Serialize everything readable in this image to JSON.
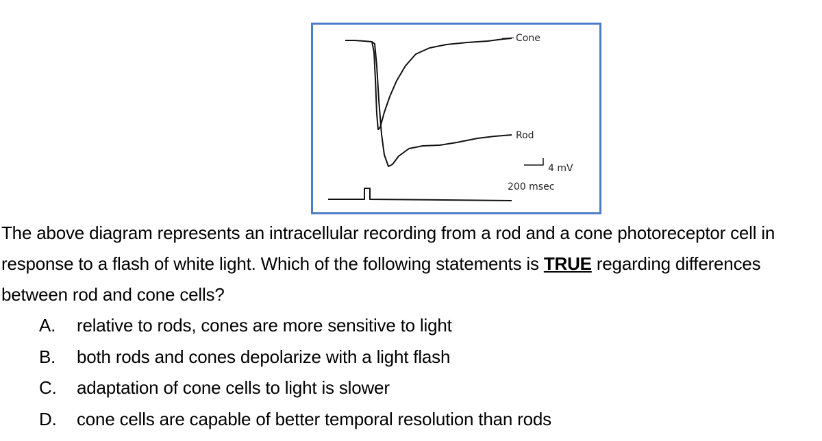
{
  "figure": {
    "cone_label": "Cone",
    "rod_label": "Rod",
    "voltage_scale": "4 mV",
    "time_scale": "200 msec"
  },
  "question": {
    "before": "The above diagram represents an intracellular recording from a rod and a cone photoreceptor cell in response to a flash of white light.  Which of the following statements is",
    "emphasis": "TRUE",
    "after": "regarding differences between rod and cone cells?"
  },
  "options": [
    {
      "letter": "A.",
      "text": "relative to rods, cones are more sensitive to light"
    },
    {
      "letter": "B.",
      "text": "both rods and cones depolarize with a light flash"
    },
    {
      "letter": "C.",
      "text": "adaptation of cone cells to light is slower"
    },
    {
      "letter": "D.",
      "text": "cone cells are capable of better temporal resolution than rods"
    }
  ]
}
